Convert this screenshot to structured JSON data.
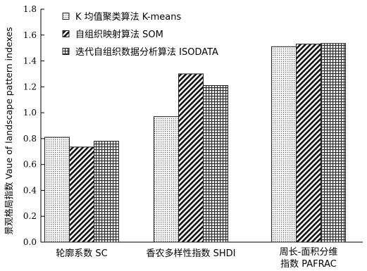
{
  "chart_data": {
    "type": "bar",
    "ylabel": "景观格局指数 Vaue of landscape pattern indexes",
    "xlabel": "",
    "ylim": [
      0,
      1.8
    ],
    "yticks": [
      "0.0",
      "0.2",
      "0.4",
      "0.6",
      "0.8",
      "1.0",
      "1.2",
      "1.4",
      "1.6",
      "1.8"
    ],
    "categories": [
      [
        "轮廓系数 SC"
      ],
      [
        "香农多样性指数 SHDI"
      ],
      [
        "周长-面积分维",
        "指数 PAFRAC"
      ]
    ],
    "series": [
      {
        "name": "K 均值聚类算法 K-means",
        "pattern": "dots",
        "values": [
          0.81,
          0.97,
          1.51
        ]
      },
      {
        "name": "自组织映射算法 SOM",
        "pattern": "diagonal",
        "values": [
          0.735,
          1.3,
          1.53
        ]
      },
      {
        "name": "迭代自组织数据分析算法 ISODATA",
        "pattern": "grid",
        "values": [
          0.78,
          1.21,
          1.535
        ]
      }
    ],
    "legend_position": "top-left",
    "grid": false
  }
}
